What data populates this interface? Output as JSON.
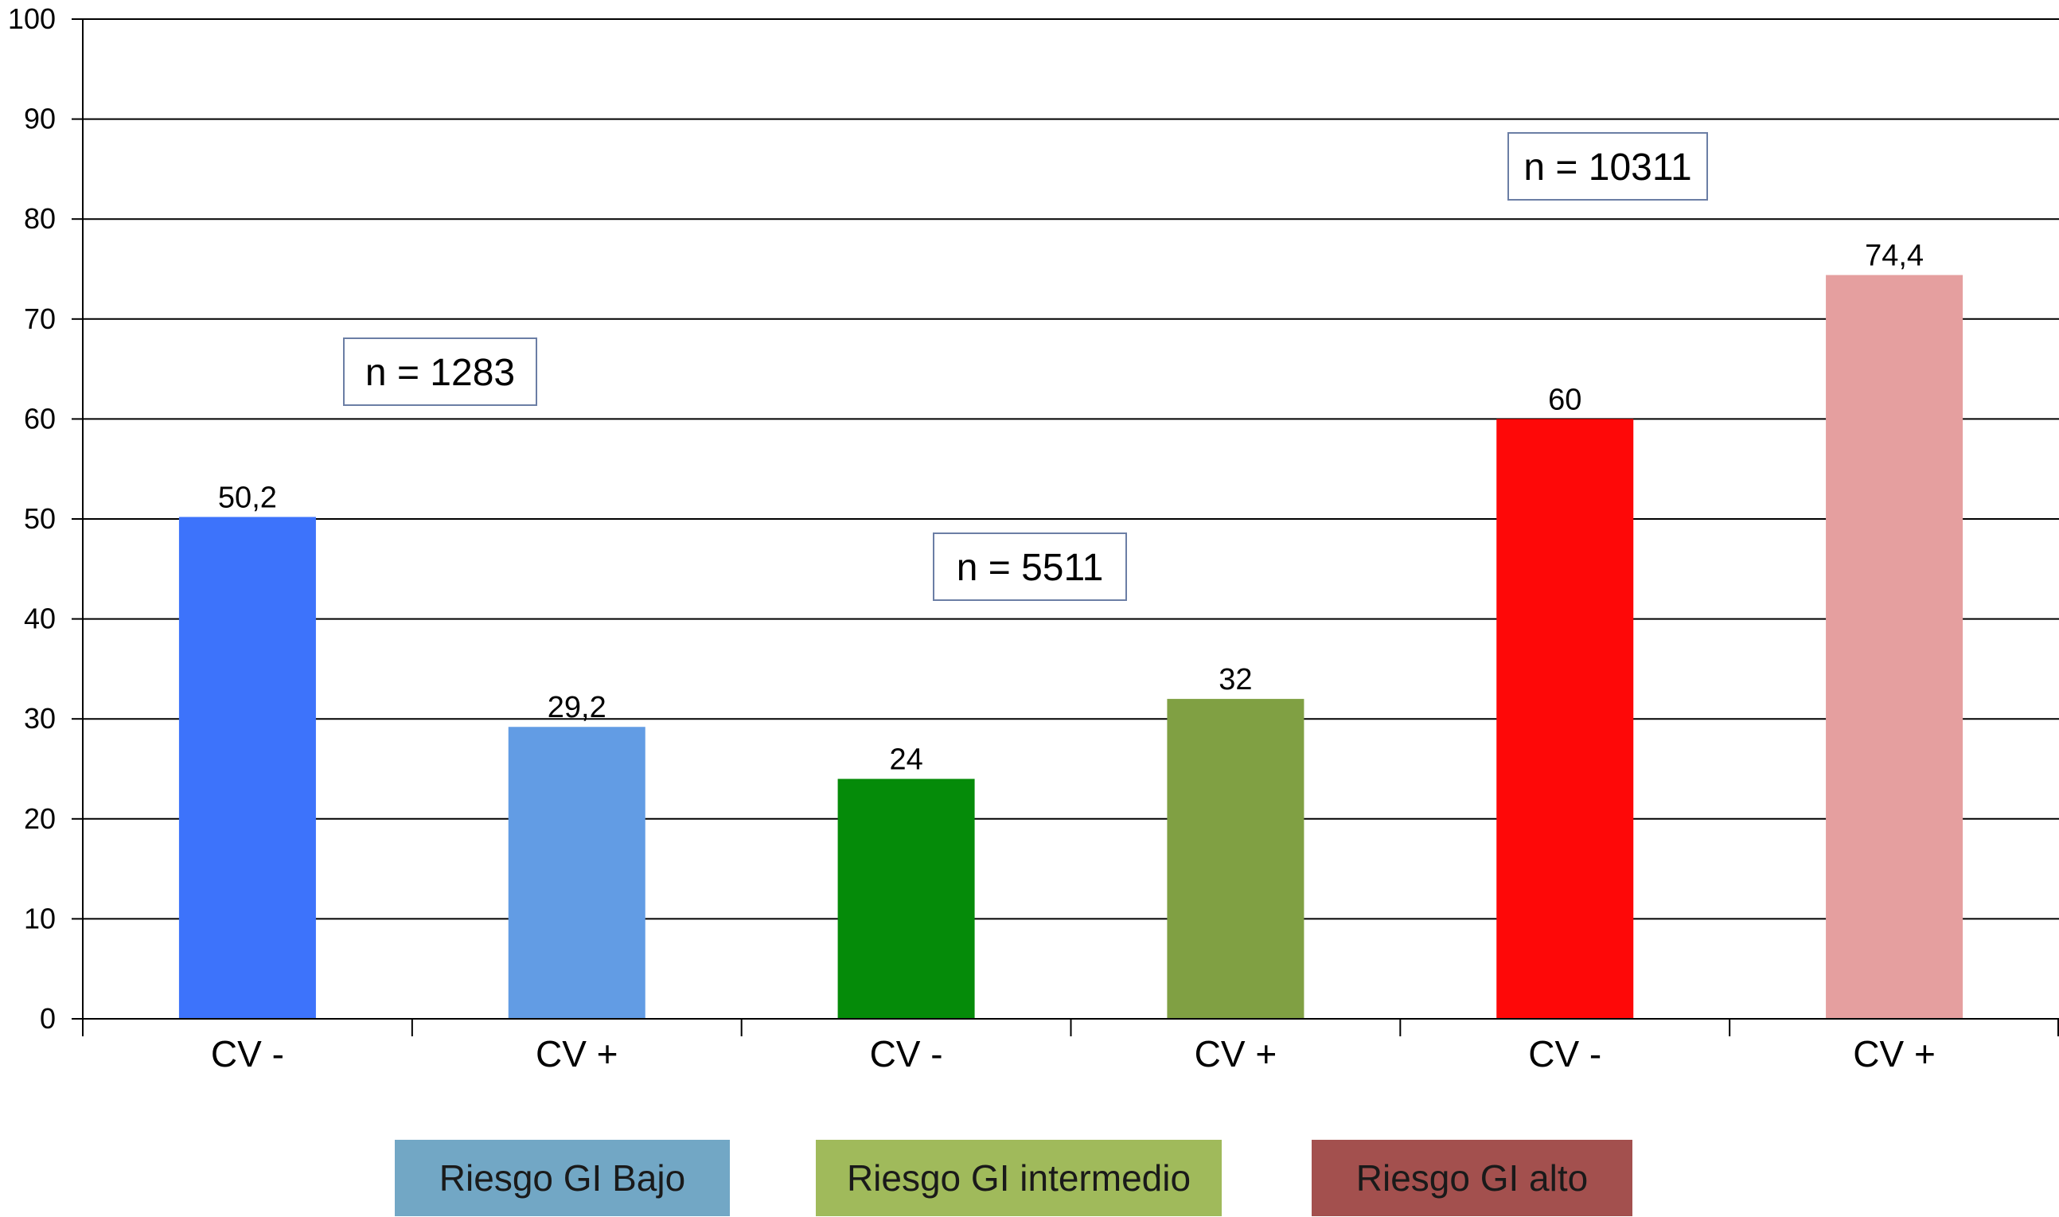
{
  "chart_data": {
    "type": "bar",
    "categories": [
      "CV -",
      "CV +",
      "CV -",
      "CV +",
      "CV -",
      "CV +"
    ],
    "values": [
      50.2,
      29.2,
      24,
      32,
      60,
      74.4
    ],
    "value_labels": [
      "50,2",
      "29,2",
      "24",
      "32",
      "60",
      "74,4"
    ],
    "bar_colors": [
      "#3d73fb",
      "#629ce4",
      "#058b09",
      "#80a043",
      "#fe0808",
      "#e59f9f"
    ],
    "ylim": [
      0,
      100
    ],
    "yticks": [
      0,
      10,
      20,
      30,
      40,
      50,
      60,
      70,
      80,
      90,
      100
    ],
    "grid": true,
    "title": "",
    "xlabel": "",
    "ylabel": "",
    "annotations": [
      {
        "text": "n = 1283",
        "group": 0
      },
      {
        "text": "n = 5511",
        "group": 1
      },
      {
        "text": "n = 10311",
        "group": 2
      }
    ],
    "legend": {
      "placement": "bottom",
      "entries": [
        {
          "label": "Riesgo GI Bajo",
          "color": "#72a7c5"
        },
        {
          "label": "Riesgo GI intermedio",
          "color": "#a0ba5b"
        },
        {
          "label": "Riesgo GI alto",
          "color": "#a3504e"
        }
      ]
    }
  }
}
